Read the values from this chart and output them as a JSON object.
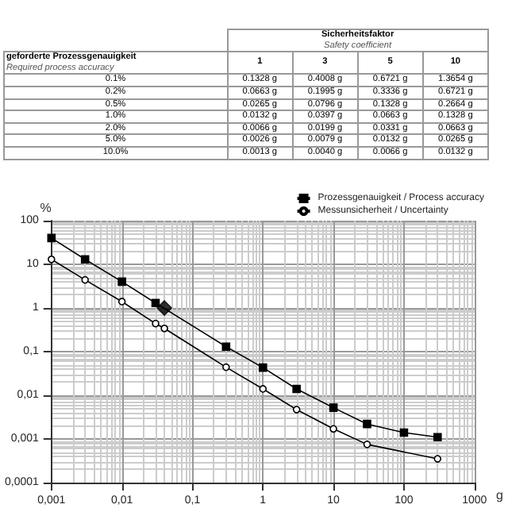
{
  "chart_data": [
    {
      "type": "other",
      "title": "Sicherheitsfaktor",
      "subtitle": "Safety coefficient",
      "ylabel": "geforderte Prozessgenauigkeit",
      "annotations": [
        "Required process accuracy"
      ],
      "categories": [
        "1",
        "3",
        "5",
        "10"
      ],
      "y_categories": [
        "0.1%",
        "0.2%",
        "0.5%",
        "1.0%",
        "2.0%",
        "5.0%",
        "10.0%"
      ],
      "cell_labels": [
        [
          "0.1328 g",
          "0.4008 g",
          "0.6721 g",
          "1.3654 g"
        ],
        [
          "0.0663 g",
          "0.1995 g",
          "0.3336 g",
          "0.6721 g"
        ],
        [
          "0.0265 g",
          "0.0796 g",
          "0.1328 g",
          "0.2664 g"
        ],
        [
          "0.0132 g",
          "0.0397 g",
          "0.0663 g",
          "0.1328 g"
        ],
        [
          "0.0066 g",
          "0.0199 g",
          "0.0331 g",
          "0.0663 g"
        ],
        [
          "0.0026 g",
          "0.0079 g",
          "0.0132 g",
          "0.0265 g"
        ],
        [
          "0.0013 g",
          "0.0040 g",
          "0.0066 g",
          "0.0132 g"
        ]
      ]
    },
    {
      "type": "line",
      "xlabel": "g",
      "ylabel": "%",
      "log": "xy",
      "grid": true,
      "legend": "top right",
      "xlim": [
        0.001,
        1000
      ],
      "ylim": [
        0.0001,
        100
      ],
      "xticks": [
        {
          "value": 0.001,
          "label": "0,001"
        },
        {
          "value": 0.01,
          "label": "0,01"
        },
        {
          "value": 0.1,
          "label": "0,1"
        },
        1,
        10,
        100,
        1000
      ],
      "yticks": [
        {
          "value": 0.0001,
          "label": "0,0001"
        },
        {
          "value": 0.001,
          "label": "0,001"
        },
        {
          "value": 0.01,
          "label": "0,01"
        },
        {
          "value": 0.1,
          "label": "0,1"
        },
        1,
        10,
        100
      ],
      "series": [
        {
          "name": "Prozessgenauigkeit / Process accuracy",
          "color": "#000000",
          "marker": "square",
          "x": [
            0.001,
            0.003,
            0.01,
            0.03,
            0.3,
            1,
            3,
            10,
            30,
            100,
            300
          ],
          "values": [
            40,
            13,
            4,
            1.3,
            0.13,
            0.043,
            0.014,
            0.0052,
            0.0022,
            0.0014,
            0.0011
          ]
        },
        {
          "name": "Messunsicherheit / Uncertainty",
          "color": "#000000",
          "marker": "circle",
          "x": [
            0.001,
            0.003,
            0.01,
            0.03,
            0.04,
            0.3,
            1,
            3,
            10,
            30,
            300
          ],
          "values": [
            13,
            4.4,
            1.4,
            0.44,
            0.34,
            0.044,
            0.014,
            0.0047,
            0.0017,
            0.00075,
            0.00035
          ]
        },
        {
          "type": "scatter",
          "color": "#000000",
          "marker": "diamond",
          "x": [
            0.04
          ],
          "values": [
            1
          ]
        }
      ]
    }
  ]
}
